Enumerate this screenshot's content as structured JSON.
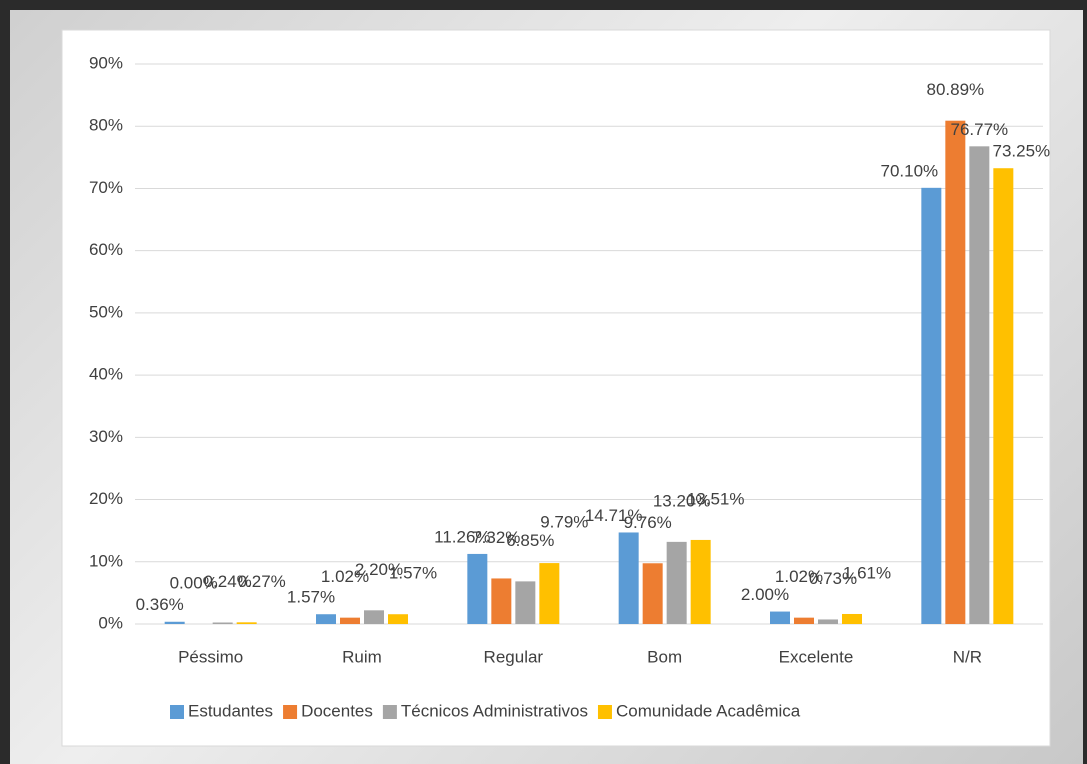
{
  "chart_data": {
    "type": "bar",
    "categories": [
      "Péssimo",
      "Ruim",
      "Regular",
      "Bom",
      "Excelente",
      "N/R"
    ],
    "series": [
      {
        "name": "Estudantes",
        "color": "#5b9bd5",
        "values": [
          0.36,
          1.57,
          11.26,
          14.71,
          2.0,
          70.1
        ],
        "value_labels": [
          "0.36%",
          "1.57%",
          "11.26%",
          "14.71%",
          "2.00%",
          "70.10%"
        ]
      },
      {
        "name": "Docentes",
        "color": "#ed7d31",
        "values": [
          0.0,
          1.02,
          7.32,
          9.76,
          1.02,
          80.89
        ],
        "value_labels": [
          "0.00%",
          "1.02%",
          "7.32%",
          "9.76%",
          "1.02%",
          "80.89%"
        ]
      },
      {
        "name": "Técnicos Administrativos",
        "color": "#a5a5a5",
        "values": [
          0.24,
          2.2,
          6.85,
          13.2,
          0.73,
          76.77
        ],
        "value_labels": [
          "0.24%",
          "2.20%",
          "6.85%",
          "13.20%",
          "0.73%",
          "76.77%"
        ]
      },
      {
        "name": "Comunidade Acadêmica",
        "color": "#ffc000",
        "values": [
          0.27,
          1.57,
          9.79,
          13.51,
          1.61,
          73.25
        ],
        "value_labels": [
          "0.27%",
          "1.57%",
          "9.79%",
          "13.51%",
          "1.61%",
          "73.25%"
        ]
      }
    ],
    "ylim": [
      0,
      90
    ],
    "yticks": [
      {
        "value": 0,
        "label": "0%"
      },
      {
        "value": 10,
        "label": "10%"
      },
      {
        "value": 20,
        "label": "20%"
      },
      {
        "value": 30,
        "label": "30%"
      },
      {
        "value": 40,
        "label": "40%"
      },
      {
        "value": 50,
        "label": "50%"
      },
      {
        "value": 60,
        "label": "60%"
      },
      {
        "value": 70,
        "label": "70%"
      },
      {
        "value": 80,
        "label": "80%"
      },
      {
        "value": 90,
        "label": "90%"
      }
    ],
    "grid": true,
    "legend": "bottom"
  }
}
